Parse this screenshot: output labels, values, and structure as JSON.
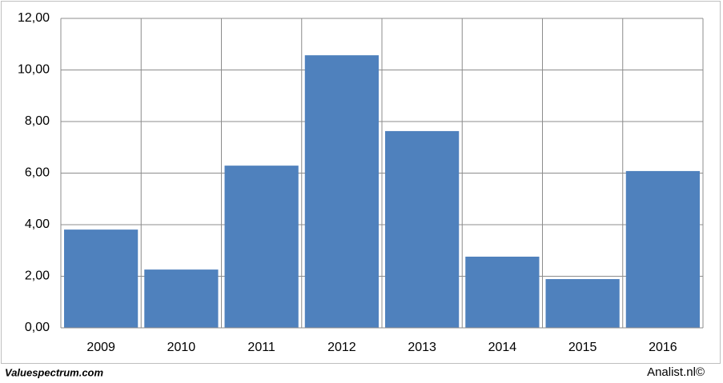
{
  "chart_data": {
    "type": "bar",
    "categories": [
      "2009",
      "2010",
      "2011",
      "2012",
      "2013",
      "2014",
      "2015",
      "2016"
    ],
    "values": [
      3.81,
      2.26,
      6.29,
      10.57,
      7.63,
      2.76,
      1.89,
      6.08
    ],
    "color": "#4f81bd",
    "ylim": [
      0,
      12
    ],
    "yticks": [
      {
        "value": 0,
        "label": "0,00"
      },
      {
        "value": 2,
        "label": "2,00"
      },
      {
        "value": 4,
        "label": "4,00"
      },
      {
        "value": 6,
        "label": "6,00"
      },
      {
        "value": 8,
        "label": "8,00"
      },
      {
        "value": 10,
        "label": "10,00"
      },
      {
        "value": 12,
        "label": "12,00"
      }
    ],
    "grid": true,
    "source_left": "Valuespectrum.com",
    "source_right": "Analist.nl©"
  }
}
